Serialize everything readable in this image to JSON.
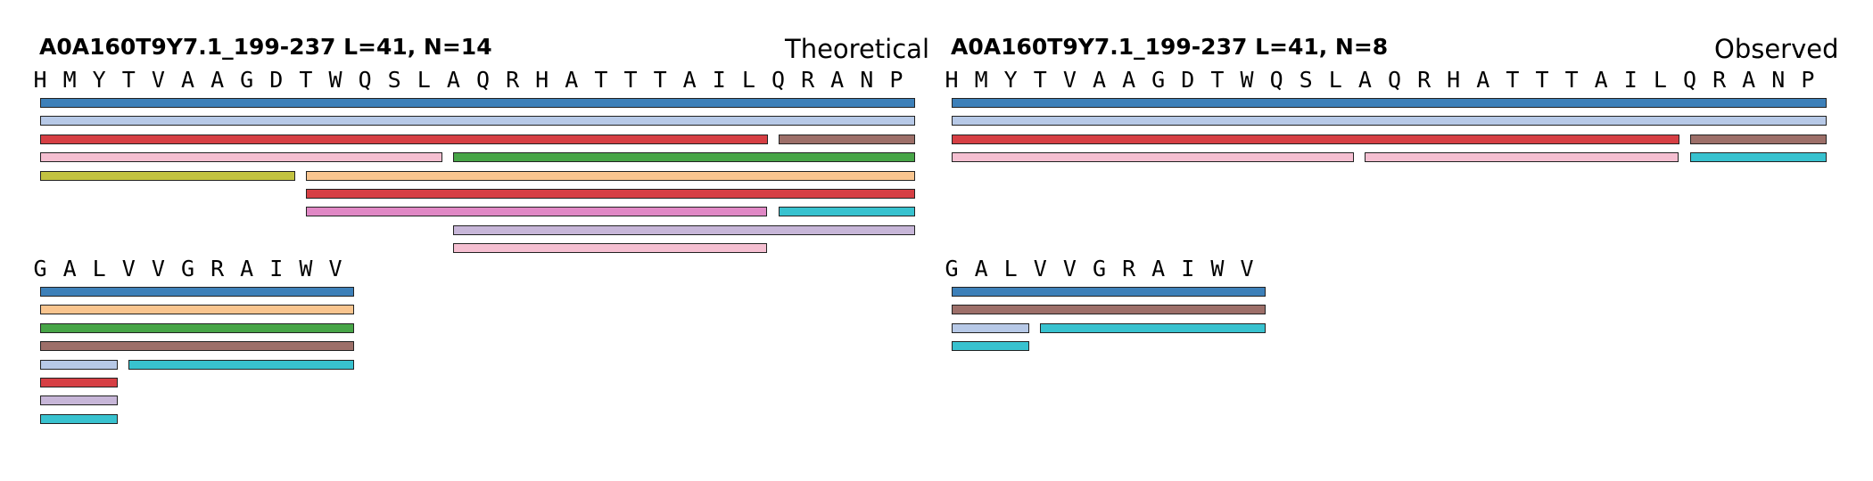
{
  "panels": [
    {
      "id": "theoretical",
      "title": "A0A160T9Y7.1_199-237  L=41, N=14",
      "label": "Theoretical",
      "blocks": [
        {
          "sequence": [
            "H",
            "M",
            "Y",
            "T",
            "V",
            "A",
            "A",
            "G",
            "D",
            "T",
            "W",
            "Q",
            "S",
            "L",
            "A",
            "Q",
            "R",
            "H",
            "A",
            "T",
            "T",
            "T",
            "A",
            "I",
            "L",
            "Q",
            "R",
            "A",
            "N",
            "P"
          ],
          "fragments": [
            {
              "start": 1,
              "end": 30,
              "color": "#3d80b9",
              "row": 0
            },
            {
              "start": 1,
              "end": 30,
              "color": "#b7c9e7",
              "row": 1
            },
            {
              "start": 1,
              "end": 25,
              "color": "#d63f44",
              "row": 2
            },
            {
              "start": 26,
              "end": 30,
              "color": "#9d6f69",
              "row": 2
            },
            {
              "start": 1,
              "end": 14,
              "color": "#f5bfd1",
              "row": 3
            },
            {
              "start": 15,
              "end": 30,
              "color": "#47a547",
              "row": 3
            },
            {
              "start": 1,
              "end": 9,
              "color": "#c2c240",
              "row": 4
            },
            {
              "start": 10,
              "end": 30,
              "color": "#f9c58f",
              "row": 4
            },
            {
              "start": 10,
              "end": 30,
              "color": "#d63f44",
              "row": 5
            },
            {
              "start": 10,
              "end": 25,
              "color": "#e088c5",
              "row": 6
            },
            {
              "start": 26,
              "end": 30,
              "color": "#38c2cf",
              "row": 6
            },
            {
              "start": 15,
              "end": 30,
              "color": "#c7b6d8",
              "row": 7
            },
            {
              "start": 15,
              "end": 25,
              "color": "#f5bfd1",
              "row": 8
            }
          ]
        },
        {
          "sequence": [
            "G",
            "A",
            "L",
            "V",
            "V",
            "G",
            "R",
            "A",
            "I",
            "W",
            "V"
          ],
          "fragments": [
            {
              "start": 1,
              "end": 11,
              "color": "#3d80b9",
              "row": 0
            },
            {
              "start": 1,
              "end": 11,
              "color": "#f9c58f",
              "row": 1
            },
            {
              "start": 1,
              "end": 11,
              "color": "#47a547",
              "row": 2
            },
            {
              "start": 1,
              "end": 11,
              "color": "#9d6f69",
              "row": 3
            },
            {
              "start": 1,
              "end": 3,
              "color": "#b7c9e7",
              "row": 4
            },
            {
              "start": 4,
              "end": 11,
              "color": "#38c2cf",
              "row": 4
            },
            {
              "start": 1,
              "end": 3,
              "color": "#d63f44",
              "row": 5
            },
            {
              "start": 1,
              "end": 3,
              "color": "#c7b6d8",
              "row": 6
            },
            {
              "start": 1,
              "end": 3,
              "color": "#38c2cf",
              "row": 7
            }
          ]
        }
      ]
    },
    {
      "id": "observed",
      "title": "A0A160T9Y7.1_199-237  L=41, N=8",
      "label": "Observed",
      "blocks": [
        {
          "sequence": [
            "H",
            "M",
            "Y",
            "T",
            "V",
            "A",
            "A",
            "G",
            "D",
            "T",
            "W",
            "Q",
            "S",
            "L",
            "A",
            "Q",
            "R",
            "H",
            "A",
            "T",
            "T",
            "T",
            "A",
            "I",
            "L",
            "Q",
            "R",
            "A",
            "N",
            "P"
          ],
          "fragments": [
            {
              "start": 1,
              "end": 30,
              "color": "#3d80b9",
              "row": 0
            },
            {
              "start": 1,
              "end": 30,
              "color": "#b7c9e7",
              "row": 1
            },
            {
              "start": 1,
              "end": 25,
              "color": "#d63f44",
              "row": 2
            },
            {
              "start": 26,
              "end": 30,
              "color": "#9d6f69",
              "row": 2
            },
            {
              "start": 1,
              "end": 14,
              "color": "#f5bfd1",
              "row": 3
            },
            {
              "start": 15,
              "end": 25,
              "color": "#f5bfd1",
              "row": 3
            },
            {
              "start": 26,
              "end": 30,
              "color": "#38c2cf",
              "row": 3
            }
          ]
        },
        {
          "sequence": [
            "G",
            "A",
            "L",
            "V",
            "V",
            "G",
            "R",
            "A",
            "I",
            "W",
            "V"
          ],
          "fragments": [
            {
              "start": 1,
              "end": 11,
              "color": "#3d80b9",
              "row": 0
            },
            {
              "start": 1,
              "end": 11,
              "color": "#9d6f69",
              "row": 1
            },
            {
              "start": 1,
              "end": 3,
              "color": "#b7c9e7",
              "row": 2
            },
            {
              "start": 4,
              "end": 11,
              "color": "#38c2cf",
              "row": 2
            },
            {
              "start": 1,
              "end": 3,
              "color": "#38c2cf",
              "row": 3
            }
          ]
        }
      ]
    }
  ]
}
